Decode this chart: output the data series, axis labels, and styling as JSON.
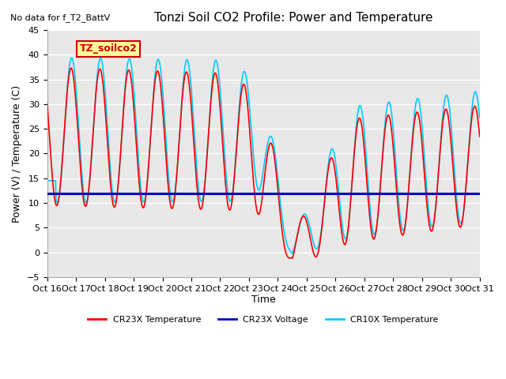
{
  "title": "Tonzi Soil CO2 Profile: Power and Temperature",
  "subtitle": "No data for f_T2_BattV",
  "ylabel": "Power (V) / Temperature (C)",
  "xlabel": "Time",
  "ylim": [
    -5,
    45
  ],
  "yticks": [
    -5,
    0,
    5,
    10,
    15,
    20,
    25,
    30,
    35,
    40,
    45
  ],
  "xtick_labels": [
    "Oct 16",
    "Oct 17",
    "Oct 18",
    "Oct 19",
    "Oct 20",
    "Oct 21",
    "Oct 22",
    "Oct 23",
    "Oct 24",
    "Oct 25",
    "Oct 26",
    "Oct 27",
    "Oct 28",
    "Oct 29",
    "Oct 30",
    "Oct 31"
  ],
  "legend_entries": [
    "CR23X Temperature",
    "CR23X Voltage",
    "CR10X Temperature"
  ],
  "legend_colors": [
    "#ff0000",
    "#0000cc",
    "#00ccff"
  ],
  "box_label": "TZ_soilco2",
  "box_facecolor": "#ffff99",
  "box_edgecolor": "#cc0000",
  "plot_bg_color": "#e8e8e8",
  "grid_color": "#ffffff",
  "n_days": 15,
  "voltage_value": 12.0
}
